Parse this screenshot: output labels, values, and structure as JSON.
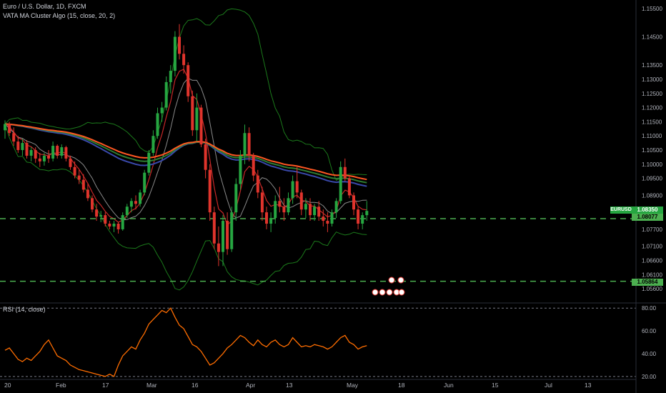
{
  "header": {
    "symbol_line": "Euro / U.S. Dollar, 1D, FXCM",
    "indicator_line": "VATA MA Cluster Algo (15, close, 20, 2)"
  },
  "rsi_header": "RSI (14, close)",
  "badges": {
    "symbol": "EURUSD",
    "symbol_price": "1.08350",
    "level_1": "1.08077",
    "level_2": "1.05864"
  },
  "colors": {
    "background": "#000000",
    "up": "#26a641",
    "down": "#e0342c",
    "level": "#4caf50",
    "rsi": "#ff6d00",
    "ma_red": "#ff5722",
    "ma_green": "#2e7d32",
    "ma_blue": "#3949ab"
  },
  "chart_data": [
    {
      "type": "candlestick",
      "title": "Euro / U.S. Dollar, 1D, FXCM",
      "ylim": [
        1.053,
        1.1575
      ],
      "y_ticks": [
        "1.15500",
        "1.14500",
        "1.13500",
        "1.13000",
        "1.12500",
        "1.12000",
        "1.11500",
        "1.11000",
        "1.10500",
        "1.10000",
        "1.09500",
        "1.08900",
        "1.08350",
        "1.08077",
        "1.07700",
        "1.07100",
        "1.06600",
        "1.06100",
        "1.05864",
        "1.05600"
      ],
      "x_ticks": [
        "20",
        "Feb",
        "17",
        "Mar",
        "16",
        "Apr",
        "13",
        "May",
        "18",
        "Jun",
        "15",
        "Jul",
        "13"
      ],
      "horizontal_levels": [
        1.08077,
        1.05864
      ],
      "candles": [
        [
          1.112,
          1.1155,
          1.109,
          1.1142
        ],
        [
          1.1142,
          1.115,
          1.11,
          1.111
        ],
        [
          1.111,
          1.113,
          1.1065,
          1.108
        ],
        [
          1.108,
          1.11,
          1.104,
          1.105
        ],
        [
          1.105,
          1.109,
          1.103,
          1.1075
        ],
        [
          1.1075,
          1.1085,
          1.102,
          1.103
        ],
        [
          1.103,
          1.106,
          1.101,
          1.105
        ],
        [
          1.105,
          1.106,
          1.1005,
          1.102
        ],
        [
          1.102,
          1.104,
          1.099,
          1.101
        ],
        [
          1.101,
          1.104,
          1.0995,
          1.103
        ],
        [
          1.103,
          1.105,
          1.1005,
          1.102
        ],
        [
          1.102,
          1.108,
          1.101,
          1.1065
        ],
        [
          1.1065,
          1.107,
          1.102,
          1.103
        ],
        [
          1.103,
          1.107,
          1.102,
          1.106
        ],
        [
          1.106,
          1.1065,
          1.101,
          1.102
        ],
        [
          1.102,
          1.103,
          1.098,
          1.099
        ],
        [
          1.099,
          1.101,
          1.095,
          1.096
        ],
        [
          1.096,
          1.098,
          1.093,
          1.0945
        ],
        [
          1.0945,
          1.0965,
          1.09,
          1.091
        ],
        [
          1.091,
          1.093,
          1.087,
          1.088
        ],
        [
          1.088,
          1.089,
          1.083,
          1.084
        ],
        [
          1.084,
          1.086,
          1.08,
          1.0815
        ],
        [
          1.0815,
          1.0835,
          1.0795,
          1.082
        ],
        [
          1.082,
          1.083,
          1.078,
          1.079
        ],
        [
          1.079,
          1.08,
          1.077,
          1.078
        ],
        [
          1.078,
          1.08,
          1.076,
          1.079
        ],
        [
          1.079,
          1.0795,
          1.0755,
          1.077
        ],
        [
          1.077,
          1.083,
          1.0765,
          1.082
        ],
        [
          1.082,
          1.086,
          1.081,
          1.085
        ],
        [
          1.085,
          1.088,
          1.083,
          1.087
        ],
        [
          1.087,
          1.089,
          1.084,
          1.086
        ],
        [
          1.086,
          1.091,
          1.085,
          1.09
        ],
        [
          1.09,
          1.098,
          1.089,
          1.097
        ],
        [
          1.097,
          1.105,
          1.096,
          1.104
        ],
        [
          1.104,
          1.112,
          1.103,
          1.11
        ],
        [
          1.11,
          1.12,
          1.109,
          1.118
        ],
        [
          1.118,
          1.122,
          1.115,
          1.12
        ],
        [
          1.12,
          1.131,
          1.119,
          1.129
        ],
        [
          1.129,
          1.135,
          1.125,
          1.133
        ],
        [
          1.133,
          1.147,
          1.131,
          1.145
        ],
        [
          1.145,
          1.1495,
          1.137,
          1.139
        ],
        [
          1.139,
          1.142,
          1.132,
          1.135
        ],
        [
          1.135,
          1.136,
          1.122,
          1.124
        ],
        [
          1.124,
          1.126,
          1.11,
          1.112
        ],
        [
          1.112,
          1.125,
          1.108,
          1.12
        ],
        [
          1.12,
          1.121,
          1.106,
          1.107
        ],
        [
          1.107,
          1.109,
          1.095,
          1.098
        ],
        [
          1.098,
          1.1,
          1.08,
          1.083
        ],
        [
          1.083,
          1.085,
          1.07,
          1.072
        ],
        [
          1.072,
          1.078,
          1.064,
          1.069
        ],
        [
          1.069,
          1.082,
          1.064,
          1.08
        ],
        [
          1.08,
          1.083,
          1.068,
          1.07
        ],
        [
          1.07,
          1.085,
          1.069,
          1.083
        ],
        [
          1.083,
          1.095,
          1.08,
          1.093
        ],
        [
          1.093,
          1.105,
          1.091,
          1.103
        ],
        [
          1.103,
          1.114,
          1.1,
          1.111
        ],
        [
          1.111,
          1.113,
          1.101,
          1.103
        ],
        [
          1.103,
          1.104,
          1.094,
          1.096
        ],
        [
          1.096,
          1.098,
          1.088,
          1.09
        ],
        [
          1.09,
          1.092,
          1.08,
          1.083
        ],
        [
          1.083,
          1.085,
          1.077,
          1.079
        ],
        [
          1.079,
          1.083,
          1.076,
          1.081
        ],
        [
          1.081,
          1.089,
          1.079,
          1.087
        ],
        [
          1.087,
          1.092,
          1.083,
          1.085
        ],
        [
          1.085,
          1.088,
          1.08,
          1.083
        ],
        [
          1.083,
          1.09,
          1.082,
          1.088
        ],
        [
          1.088,
          1.096,
          1.086,
          1.094
        ],
        [
          1.094,
          1.099,
          1.088,
          1.09
        ],
        [
          1.09,
          1.091,
          1.082,
          1.084
        ],
        [
          1.084,
          1.088,
          1.081,
          1.086
        ],
        [
          1.086,
          1.088,
          1.08,
          1.082
        ],
        [
          1.082,
          1.086,
          1.08,
          1.085
        ],
        [
          1.085,
          1.087,
          1.08,
          1.0815
        ],
        [
          1.0815,
          1.084,
          1.078,
          1.08
        ],
        [
          1.08,
          1.083,
          1.076,
          1.079
        ],
        [
          1.079,
          1.084,
          1.078,
          1.083
        ],
        [
          1.083,
          1.088,
          1.081,
          1.087
        ],
        [
          1.087,
          1.101,
          1.086,
          1.099
        ],
        [
          1.099,
          1.102,
          1.094,
          1.095
        ],
        [
          1.095,
          1.096,
          1.088,
          1.089
        ],
        [
          1.089,
          1.09,
          1.082,
          1.084
        ],
        [
          1.084,
          1.085,
          1.077,
          1.079
        ],
        [
          1.079,
          1.083,
          1.077,
          1.082
        ],
        [
          1.082,
          1.087,
          1.08,
          1.0835
        ]
      ]
    },
    {
      "type": "line",
      "title": "RSI (14, close)",
      "ylim": [
        18,
        82
      ],
      "y_ticks": [
        "80.00",
        "60.00",
        "40.00",
        "20.00"
      ],
      "guide_levels": [
        80,
        20
      ],
      "values": [
        43,
        45,
        40,
        35,
        33,
        36,
        34,
        38,
        42,
        48,
        52,
        45,
        38,
        36,
        34,
        30,
        28,
        26,
        25,
        24,
        23,
        22,
        21,
        20,
        22,
        20,
        30,
        38,
        42,
        46,
        44,
        52,
        58,
        66,
        70,
        74,
        78,
        76,
        80,
        72,
        65,
        62,
        55,
        48,
        46,
        42,
        36,
        30,
        32,
        36,
        40,
        45,
        48,
        52,
        56,
        54,
        50,
        47,
        52,
        48,
        46,
        50,
        52,
        48,
        46,
        48,
        54,
        50,
        46,
        47,
        46,
        48,
        47,
        46,
        44,
        46,
        50,
        54,
        56,
        50,
        48,
        44,
        46,
        47
      ]
    }
  ]
}
